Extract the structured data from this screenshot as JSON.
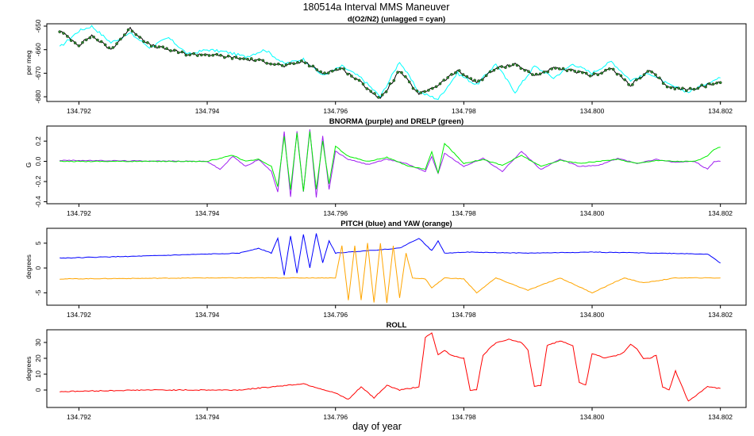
{
  "figure": {
    "title": "180514a   Interval MMS Maneuver",
    "xlabel": "day of year"
  },
  "chart_data": [
    {
      "type": "line",
      "title": "d(O2/N2) (unlagged = cyan)",
      "ylabel": "per meg",
      "xlim": [
        134.7915,
        134.8024
      ],
      "ylim": [
        -682,
        -649
      ],
      "x_ticks": [
        134.792,
        134.794,
        134.796,
        134.798,
        134.8,
        134.802
      ],
      "x_tick_labels": [
        "134.792",
        "134.794",
        "134.796",
        "134.798",
        "134.800",
        "134.802"
      ],
      "y_ticks": [
        -650,
        -660,
        -670,
        -680
      ],
      "y_tick_labels": [
        "-650",
        "-660",
        "-670",
        "-680"
      ],
      "series": [
        {
          "color": "#00ffff",
          "x": [
            134.7917,
            134.792,
            134.7922,
            134.7925,
            134.7928,
            134.7931,
            134.7934,
            134.7937,
            134.794,
            134.7943,
            134.7946,
            134.7949,
            134.7952,
            134.7955,
            134.7958,
            134.7961,
            134.7964,
            134.7967,
            134.797,
            134.7973,
            134.7976,
            134.7979,
            134.7982,
            134.7985,
            134.7988,
            134.7991,
            134.7994,
            134.7997,
            134.8,
            134.8003,
            134.8006,
            134.8009,
            134.8012,
            134.8015,
            134.8018,
            134.802
          ],
          "values": [
            -659,
            -652,
            -650,
            -657,
            -653,
            -659,
            -655,
            -662,
            -660,
            -661,
            -663,
            -660,
            -666,
            -664,
            -671,
            -667,
            -672,
            -680,
            -665,
            -678,
            -681,
            -670,
            -675,
            -666,
            -678,
            -667,
            -672,
            -666,
            -670,
            -665,
            -673,
            -670,
            -675,
            -678,
            -674,
            -672
          ]
        },
        {
          "color": "#000000",
          "marker_color": "#2e8b2e",
          "x": [
            134.7917,
            134.792,
            134.7922,
            134.7925,
            134.7928,
            134.7931,
            134.7934,
            134.7937,
            134.794,
            134.7943,
            134.7946,
            134.7949,
            134.7952,
            134.7955,
            134.7958,
            134.7961,
            134.7964,
            134.7967,
            134.797,
            134.7973,
            134.7976,
            134.7979,
            134.7982,
            134.7985,
            134.7988,
            134.7991,
            134.7994,
            134.7997,
            134.8,
            134.8003,
            134.8006,
            134.8009,
            134.8012,
            134.8015,
            134.8018,
            134.802
          ],
          "values": [
            -652,
            -658,
            -654,
            -660,
            -651,
            -658,
            -660,
            -662,
            -662,
            -663,
            -664,
            -665,
            -667,
            -665,
            -670,
            -668,
            -674,
            -681,
            -669,
            -679,
            -675,
            -669,
            -674,
            -668,
            -666,
            -671,
            -668,
            -669,
            -671,
            -668,
            -675,
            -669,
            -676,
            -677,
            -675,
            -674
          ]
        }
      ]
    },
    {
      "type": "line",
      "title": "BNORMA (purple) and DRELP (green)",
      "ylabel": "G",
      "xlim": [
        134.7915,
        134.8024
      ],
      "ylim": [
        -0.42,
        0.35
      ],
      "x_ticks": [
        134.792,
        134.794,
        134.796,
        134.798,
        134.8,
        134.802
      ],
      "x_tick_labels": [
        "134.792",
        "134.794",
        "134.796",
        "134.798",
        "134.800",
        "134.802"
      ],
      "y_ticks": [
        0.2,
        0.0,
        -0.2,
        -0.4
      ],
      "y_tick_labels": [
        "0.2",
        "0.0",
        "-0.2",
        "-0.4"
      ],
      "series": [
        {
          "color": "#a020f0",
          "x": [
            134.7917,
            134.794,
            134.7942,
            134.7944,
            134.7946,
            134.7948,
            134.795,
            134.7951,
            134.7952,
            134.7953,
            134.7954,
            134.7955,
            134.7956,
            134.7957,
            134.7958,
            134.7959,
            134.796,
            134.7962,
            134.7965,
            134.7968,
            134.7971,
            134.7974,
            134.7975,
            134.7976,
            134.7977,
            134.798,
            134.7983,
            134.7986,
            134.7989,
            134.7992,
            134.7995,
            134.7998,
            134.8001,
            134.8004,
            134.8007,
            134.801,
            134.8013,
            134.8016,
            134.8018,
            134.8019,
            134.802
          ],
          "values": [
            0.01,
            0.0,
            -0.08,
            0.05,
            -0.05,
            0.02,
            -0.1,
            -0.3,
            0.3,
            -0.35,
            0.3,
            -0.3,
            0.32,
            -0.36,
            0.25,
            -0.28,
            0.1,
            0.02,
            -0.03,
            0.02,
            -0.02,
            -0.1,
            0.05,
            -0.12,
            0.08,
            -0.05,
            0.03,
            -0.1,
            0.1,
            -0.08,
            0.02,
            -0.05,
            -0.04,
            0.03,
            -0.02,
            0.02,
            -0.01,
            0.0,
            -0.08,
            0.0,
            0.0
          ]
        },
        {
          "color": "#00ee00",
          "x": [
            134.7917,
            134.794,
            134.7942,
            134.7944,
            134.7946,
            134.7948,
            134.795,
            134.7951,
            134.7952,
            134.7953,
            134.7954,
            134.7955,
            134.7956,
            134.7957,
            134.7958,
            134.7959,
            134.796,
            134.7962,
            134.7965,
            134.7968,
            134.7971,
            134.7974,
            134.7975,
            134.7976,
            134.7977,
            134.798,
            134.7983,
            134.7986,
            134.7989,
            134.7992,
            134.7995,
            134.7998,
            134.8001,
            134.8004,
            134.8007,
            134.801,
            134.8013,
            134.8016,
            134.8018,
            134.8019,
            134.802
          ],
          "values": [
            0.0,
            0.0,
            0.03,
            0.06,
            0.0,
            0.02,
            -0.05,
            -0.25,
            0.25,
            -0.28,
            0.28,
            -0.3,
            0.3,
            -0.28,
            0.2,
            -0.22,
            0.15,
            0.05,
            0.0,
            0.04,
            -0.04,
            -0.08,
            0.1,
            -0.12,
            0.18,
            -0.02,
            0.02,
            -0.04,
            0.06,
            -0.05,
            0.01,
            -0.02,
            0.0,
            0.02,
            -0.02,
            0.01,
            0.0,
            0.0,
            0.05,
            0.12,
            0.14
          ]
        }
      ]
    },
    {
      "type": "line",
      "title": "PITCH (blue) and YAW (orange)",
      "ylabel": "degrees",
      "xlim": [
        134.7915,
        134.8024
      ],
      "ylim": [
        -7.5,
        8
      ],
      "x_ticks": [
        134.792,
        134.794,
        134.796,
        134.798,
        134.8,
        134.802
      ],
      "x_tick_labels": [
        "134.792",
        "134.794",
        "134.796",
        "134.798",
        "134.800",
        "134.802"
      ],
      "y_ticks": [
        5,
        0,
        -5
      ],
      "y_tick_labels": [
        "5",
        "0",
        "-5"
      ],
      "series": [
        {
          "color": "#0000ff",
          "x": [
            134.7917,
            134.793,
            134.794,
            134.7945,
            134.7948,
            134.795,
            134.7951,
            134.7952,
            134.7953,
            134.7954,
            134.7955,
            134.7956,
            134.7957,
            134.7958,
            134.7959,
            134.796,
            134.7965,
            134.797,
            134.7973,
            134.7975,
            134.7976,
            134.7977,
            134.798,
            134.799,
            134.8,
            134.801,
            134.8018,
            134.802
          ],
          "values": [
            2.0,
            2.4,
            2.8,
            3.0,
            4.0,
            3.0,
            6.0,
            -1.5,
            6.5,
            -1.0,
            6.8,
            0.0,
            7.0,
            1.0,
            5.5,
            3.0,
            3.5,
            4.0,
            6.0,
            3.5,
            5.5,
            3.0,
            3.2,
            3.0,
            3.2,
            3.0,
            2.8,
            1.0
          ]
        },
        {
          "color": "#ffa500",
          "x": [
            134.7917,
            134.794,
            134.796,
            134.7961,
            134.7962,
            134.7963,
            134.7964,
            134.7965,
            134.7966,
            134.7967,
            134.7968,
            134.7969,
            134.797,
            134.7971,
            134.7972,
            134.7974,
            134.7975,
            134.7977,
            134.798,
            134.7982,
            134.7985,
            134.799,
            134.7995,
            134.8,
            134.8005,
            134.8008,
            134.8013,
            134.802
          ],
          "values": [
            -2.2,
            -2.0,
            -2.0,
            4.5,
            -6.5,
            4.5,
            -6.5,
            5.0,
            -7.0,
            5.0,
            -7.0,
            4.5,
            -6.0,
            3.0,
            -2.0,
            -2.2,
            -4.0,
            -2.0,
            -2.2,
            -5.0,
            -2.0,
            -4.5,
            -2.0,
            -5.0,
            -2.0,
            -3.0,
            -2.0,
            -2.0
          ]
        }
      ]
    },
    {
      "type": "line",
      "title": "ROLL",
      "ylabel": "degrees",
      "xlim": [
        134.7915,
        134.8024
      ],
      "ylim": [
        -11,
        38
      ],
      "x_ticks": [
        134.792,
        134.794,
        134.796,
        134.798,
        134.8,
        134.802
      ],
      "x_tick_labels": [
        "134.792",
        "134.794",
        "134.796",
        "134.798",
        "134.800",
        "134.802"
      ],
      "y_ticks": [
        30,
        20,
        10,
        0
      ],
      "y_tick_labels": [
        "30",
        "20",
        "10",
        "0"
      ],
      "series": [
        {
          "color": "#ff0000",
          "x": [
            134.7917,
            134.793,
            134.7945,
            134.795,
            134.7955,
            134.796,
            134.7962,
            134.7964,
            134.7966,
            134.7968,
            134.797,
            134.7973,
            134.7974,
            134.7975,
            134.7976,
            134.7977,
            134.7978,
            134.798,
            134.7981,
            134.7982,
            134.7983,
            134.7985,
            134.7987,
            134.7989,
            134.799,
            134.7991,
            134.7992,
            134.7993,
            134.7995,
            134.7997,
            134.7998,
            134.7999,
            134.8,
            134.8002,
            134.8004,
            134.8005,
            134.8006,
            134.8007,
            134.8008,
            134.8009,
            134.801,
            134.8011,
            134.8012,
            134.8013,
            134.8015,
            134.8018,
            134.802
          ],
          "values": [
            -1,
            0,
            0,
            2,
            4,
            -2,
            -6,
            2,
            -5,
            3,
            0,
            2,
            33,
            36,
            22,
            25,
            22,
            20,
            0,
            0,
            22,
            30,
            32,
            30,
            25,
            2,
            3,
            28,
            31,
            28,
            5,
            3,
            23,
            20,
            22,
            24,
            29,
            26,
            20,
            20,
            22,
            2,
            0,
            12,
            -7,
            2,
            1
          ]
        }
      ]
    }
  ]
}
